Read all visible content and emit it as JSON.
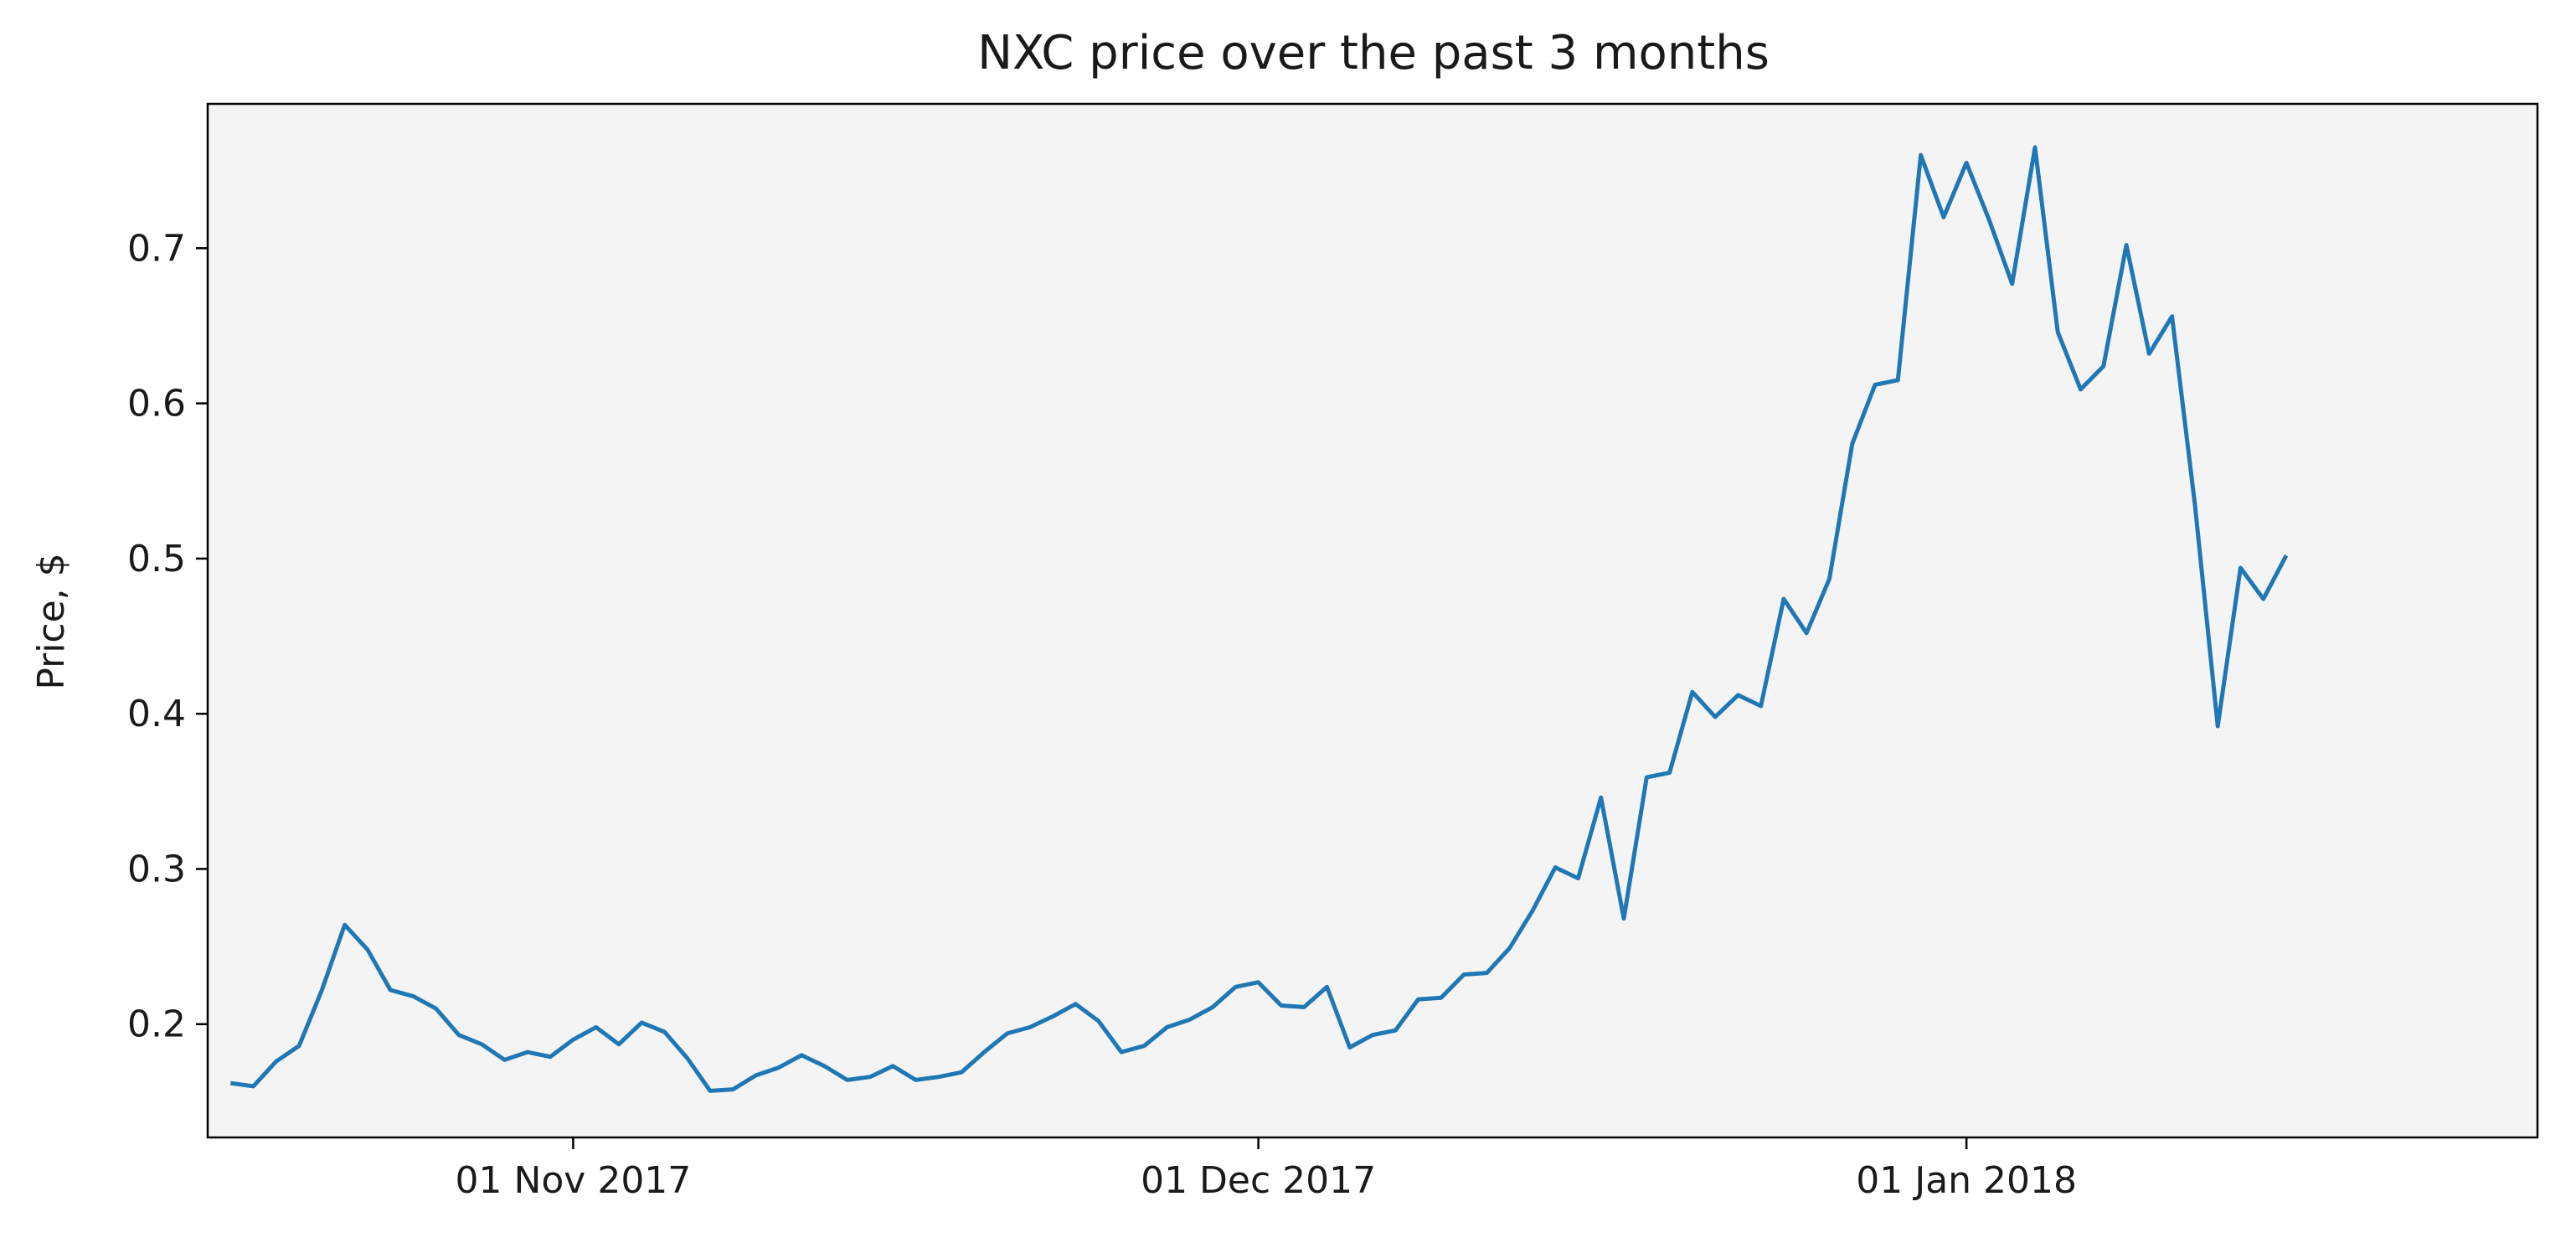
{
  "chart_data": {
    "type": "line",
    "title": "NXC price over the past 3 months",
    "xlabel": "",
    "ylabel": "Price, $",
    "x_start_date": "2017-10-17",
    "x_step_days": 1,
    "xlim": [
      "2017-10-16",
      "2018-01-26"
    ],
    "ylim": [
      0.127,
      0.793
    ],
    "x_ticks": [
      {
        "date": "2017-11-01",
        "label": "01 Nov 2017"
      },
      {
        "date": "2017-12-01",
        "label": "01 Dec 2017"
      },
      {
        "date": "2018-01-01",
        "label": "01 Jan 2018"
      }
    ],
    "y_ticks": [
      {
        "value": 0.2,
        "label": "0.2"
      },
      {
        "value": 0.3,
        "label": "0.3"
      },
      {
        "value": 0.4,
        "label": "0.4"
      },
      {
        "value": 0.5,
        "label": "0.5"
      },
      {
        "value": 0.6,
        "label": "0.6"
      },
      {
        "value": 0.7,
        "label": "0.7"
      }
    ],
    "grid": false,
    "legend": "none",
    "series": [
      {
        "color": "#1f77b4",
        "values": [
          0.162,
          0.16,
          0.176,
          0.186,
          0.222,
          0.264,
          0.248,
          0.222,
          0.218,
          0.21,
          0.193,
          0.187,
          0.177,
          0.182,
          0.179,
          0.19,
          0.198,
          0.187,
          0.201,
          0.195,
          0.178,
          0.157,
          0.158,
          0.167,
          0.172,
          0.18,
          0.173,
          0.164,
          0.166,
          0.173,
          0.164,
          0.166,
          0.169,
          0.182,
          0.194,
          0.198,
          0.205,
          0.213,
          0.202,
          0.182,
          0.186,
          0.198,
          0.203,
          0.211,
          0.224,
          0.227,
          0.212,
          0.211,
          0.224,
          0.185,
          0.193,
          0.196,
          0.216,
          0.217,
          0.232,
          0.233,
          0.249,
          0.273,
          0.301,
          0.294,
          0.346,
          0.268,
          0.359,
          0.362,
          0.414,
          0.398,
          0.412,
          0.405,
          0.474,
          0.452,
          0.487,
          0.574,
          0.612,
          0.615,
          0.76,
          0.72,
          0.755,
          0.718,
          0.677,
          0.765,
          0.646,
          0.609,
          0.624,
          0.702,
          0.632,
          0.656,
          0.535,
          0.392,
          0.494,
          0.474,
          0.502
        ]
      }
    ],
    "colors": {
      "plot_background": "#f4f4f4",
      "frame": "#000000",
      "text": "#1a1a1a"
    }
  }
}
